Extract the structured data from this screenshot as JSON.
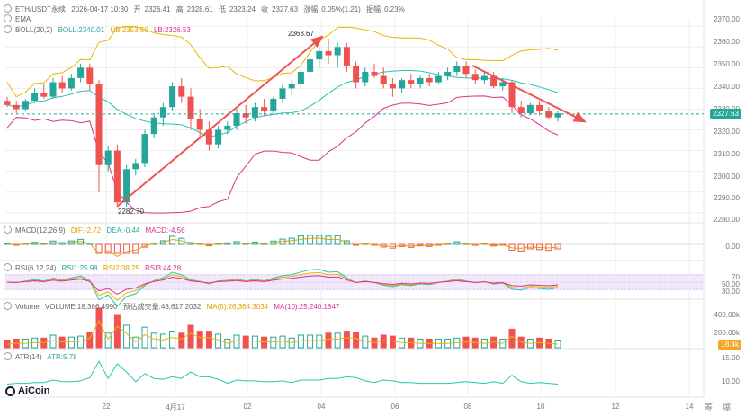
{
  "header": {
    "symbol": "ETH/USDT永续",
    "time": "2026-04-17 10:30",
    "open_label": "开",
    "open": "2326.41",
    "high_label": "高",
    "high": "2328.61",
    "low_label": "低",
    "low": "2323.24",
    "close_label": "收",
    "close": "2327.63",
    "change_label": "涨幅",
    "change": "0.05%(1.21)",
    "amp_label": "振幅",
    "amp": "0.23%"
  },
  "indicators": {
    "ema": "EMA",
    "boll": "BOLL(20,2)",
    "boll_mid": "BOLL:2340.01",
    "boll_up": "UB:2353.50",
    "boll_low": "LB:2326.53",
    "macd": "MACD(12,26,9)",
    "dif": "DIF:-2.72",
    "dea": "DEA:-0.44",
    "macd_val": "MACD:-4.56",
    "rsi": "RSI(6,12,24)",
    "rsi1": "RSI1:25.98",
    "rsi2": "RSI2:38.25",
    "rsi3": "RSI3:44.28",
    "volume_label": "Volume",
    "volume_val": "VOLUME:18,366.4990",
    "vol_est": "预估成交量:48,617.2032",
    "vol_ma5": "MA(5):26,364.3034",
    "vol_ma10": "MA(10):25,240.1847",
    "atr": "ATR(14)",
    "atr_val": "ATR:5.78"
  },
  "price_axis": [
    "2370.00",
    "2360.00",
    "2350.00",
    "2340.00",
    "2330.00",
    "2320.00",
    "2310.00",
    "2300.00",
    "2290.00",
    "2280.00"
  ],
  "current_price": "2327.63",
  "macd_axis": [
    "0.00"
  ],
  "rsi_axis": [
    "70",
    "50.00",
    "30.00"
  ],
  "vol_axis": [
    "400.00k",
    "200.00k"
  ],
  "vol_tag": "18.4k",
  "atr_axis": [
    "15.00",
    "10.00"
  ],
  "x_axis": [
    "22",
    "4月17",
    "02",
    "04",
    "06",
    "08",
    "10",
    "12",
    "14"
  ],
  "annotations": {
    "high": "2363.67",
    "low": "2282.70"
  },
  "footer": {
    "logo": "AiCoin",
    "btn1": "筹",
    "btn2": "爆"
  },
  "colors": {
    "up": "#26a69a",
    "down": "#ef5350",
    "accent": "#f5a623",
    "grid": "#eeeeee"
  },
  "chart_data": {
    "type": "candlestick",
    "ylim": [
      2276,
      2374
    ],
    "candles": [
      [
        2334,
        2336,
        2331,
        2332
      ],
      [
        2332,
        2334,
        2328,
        2330
      ],
      [
        2330,
        2335,
        2329,
        2334
      ],
      [
        2334,
        2340,
        2333,
        2338
      ],
      [
        2338,
        2342,
        2335,
        2336
      ],
      [
        2336,
        2345,
        2335,
        2343
      ],
      [
        2343,
        2346,
        2338,
        2340
      ],
      [
        2340,
        2347,
        2339,
        2345
      ],
      [
        2345,
        2352,
        2343,
        2350
      ],
      [
        2350,
        2352,
        2339,
        2342
      ],
      [
        2342,
        2344,
        2290,
        2303
      ],
      [
        2303,
        2312,
        2300,
        2310
      ],
      [
        2310,
        2313,
        2283,
        2285
      ],
      [
        2285,
        2303,
        2283,
        2301
      ],
      [
        2301,
        2306,
        2298,
        2304
      ],
      [
        2304,
        2320,
        2302,
        2318
      ],
      [
        2318,
        2328,
        2316,
        2326
      ],
      [
        2326,
        2333,
        2322,
        2331
      ],
      [
        2331,
        2343,
        2329,
        2341
      ],
      [
        2341,
        2345,
        2333,
        2336
      ],
      [
        2336,
        2340,
        2320,
        2325
      ],
      [
        2325,
        2330,
        2316,
        2320
      ],
      [
        2320,
        2324,
        2310,
        2313
      ],
      [
        2313,
        2322,
        2311,
        2320
      ],
      [
        2320,
        2324,
        2318,
        2322
      ],
      [
        2322,
        2330,
        2320,
        2328
      ],
      [
        2328,
        2332,
        2323,
        2326
      ],
      [
        2326,
        2333,
        2324,
        2331
      ],
      [
        2331,
        2335,
        2327,
        2329
      ],
      [
        2329,
        2336,
        2328,
        2335
      ],
      [
        2335,
        2342,
        2333,
        2340
      ],
      [
        2340,
        2344,
        2337,
        2342
      ],
      [
        2342,
        2350,
        2340,
        2348
      ],
      [
        2348,
        2356,
        2346,
        2354
      ],
      [
        2354,
        2360,
        2350,
        2358
      ],
      [
        2358,
        2364,
        2352,
        2356
      ],
      [
        2356,
        2362,
        2350,
        2360
      ],
      [
        2360,
        2362,
        2348,
        2351
      ],
      [
        2351,
        2353,
        2340,
        2343
      ],
      [
        2343,
        2350,
        2341,
        2348
      ],
      [
        2348,
        2352,
        2345,
        2346
      ],
      [
        2346,
        2350,
        2340,
        2342
      ],
      [
        2342,
        2345,
        2336,
        2340
      ],
      [
        2340,
        2345,
        2338,
        2344
      ],
      [
        2344,
        2347,
        2340,
        2342
      ],
      [
        2342,
        2346,
        2340,
        2345
      ],
      [
        2345,
        2347,
        2341,
        2343
      ],
      [
        2343,
        2348,
        2342,
        2346
      ],
      [
        2346,
        2350,
        2344,
        2348
      ],
      [
        2348,
        2353,
        2346,
        2351
      ],
      [
        2351,
        2353,
        2345,
        2347
      ],
      [
        2347,
        2349,
        2342,
        2344
      ],
      [
        2344,
        2348,
        2342,
        2346
      ],
      [
        2346,
        2348,
        2340,
        2341
      ],
      [
        2341,
        2345,
        2339,
        2343
      ],
      [
        2343,
        2344,
        2328,
        2331
      ],
      [
        2331,
        2334,
        2326,
        2328
      ],
      [
        2328,
        2333,
        2327,
        2332
      ],
      [
        2332,
        2334,
        2327,
        2329
      ],
      [
        2329,
        2331,
        2325,
        2326
      ],
      [
        2326,
        2329,
        2324,
        2328
      ]
    ]
  }
}
